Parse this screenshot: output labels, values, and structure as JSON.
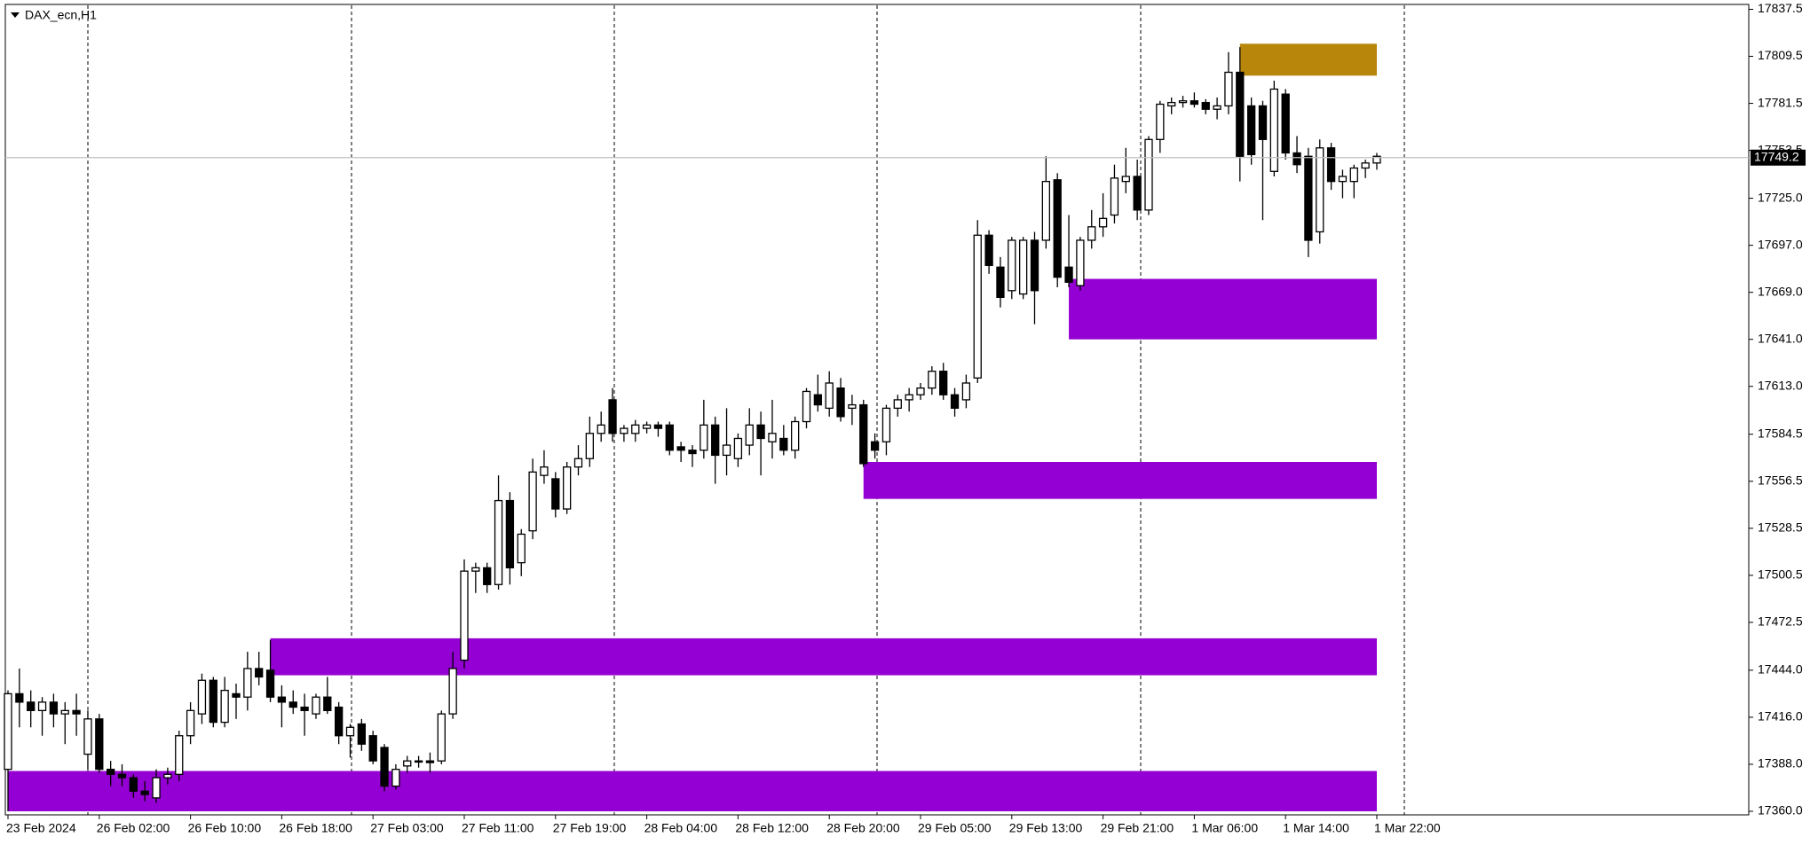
{
  "chart_data": {
    "type": "candlestick",
    "title": "DAX_ecn,H1",
    "categories": [
      "23 Feb 2024",
      null,
      null,
      null,
      null,
      null,
      null,
      null,
      "26 Feb 02:00",
      null,
      null,
      null,
      null,
      null,
      null,
      null,
      "26 Feb 10:00",
      null,
      null,
      null,
      null,
      null,
      null,
      null,
      "26 Feb 18:00",
      null,
      null,
      null,
      null,
      null,
      null,
      null,
      "27 Feb 03:00",
      null,
      null,
      null,
      null,
      null,
      null,
      null,
      "27 Feb 11:00",
      null,
      null,
      null,
      null,
      null,
      null,
      null,
      "27 Feb 19:00",
      null,
      null,
      null,
      null,
      null,
      null,
      null,
      "28 Feb 04:00",
      null,
      null,
      null,
      null,
      null,
      null,
      null,
      "28 Feb 12:00",
      null,
      null,
      null,
      null,
      null,
      null,
      null,
      "28 Feb 20:00",
      null,
      null,
      null,
      null,
      null,
      null,
      null,
      "29 Feb 05:00",
      null,
      null,
      null,
      null,
      null,
      null,
      null,
      "29 Feb 13:00",
      null,
      null,
      null,
      null,
      null,
      null,
      null,
      "29 Feb 21:00",
      null,
      null,
      null,
      null,
      null,
      null,
      null,
      "1 Mar 06:00",
      null,
      null,
      null,
      null,
      null,
      null,
      null,
      "1 Mar 14:00",
      null,
      null,
      null,
      null,
      null,
      null,
      null,
      "1 Mar 22:00"
    ],
    "ohlc": [
      [
        17385,
        17432,
        17360,
        17430
      ],
      [
        17430,
        17445,
        17410,
        17425
      ],
      [
        17425,
        17432,
        17410,
        17420
      ],
      [
        17420,
        17428,
        17405,
        17425
      ],
      [
        17425,
        17430,
        17410,
        17418
      ],
      [
        17418,
        17425,
        17400,
        17420
      ],
      [
        17420,
        17430,
        17405,
        17418
      ],
      [
        17394,
        17420,
        17385,
        17415
      ],
      [
        17415,
        17418,
        17383,
        17385
      ],
      [
        17385,
        17390,
        17375,
        17382
      ],
      [
        17382,
        17388,
        17375,
        17380
      ],
      [
        17380,
        17382,
        17368,
        17372
      ],
      [
        17372,
        17378,
        17366,
        17370
      ],
      [
        17368,
        17385,
        17365,
        17380
      ],
      [
        17380,
        17386,
        17376,
        17382
      ],
      [
        17382,
        17408,
        17378,
        17405
      ],
      [
        17405,
        17425,
        17400,
        17420
      ],
      [
        17418,
        17442,
        17412,
        17438
      ],
      [
        17438,
        17440,
        17410,
        17413
      ],
      [
        17413,
        17440,
        17410,
        17432
      ],
      [
        17430,
        17436,
        17415,
        17428
      ],
      [
        17428,
        17455,
        17420,
        17445
      ],
      [
        17445,
        17455,
        17435,
        17440
      ],
      [
        17444,
        17462,
        17425,
        17428
      ],
      [
        17428,
        17435,
        17410,
        17425
      ],
      [
        17425,
        17432,
        17418,
        17422
      ],
      [
        17422,
        17430,
        17405,
        17420
      ],
      [
        17418,
        17430,
        17415,
        17428
      ],
      [
        17428,
        17440,
        17418,
        17420
      ],
      [
        17422,
        17425,
        17400,
        17405
      ],
      [
        17405,
        17412,
        17392,
        17410
      ],
      [
        17412,
        17415,
        17396,
        17400
      ],
      [
        17405,
        17408,
        17388,
        17390
      ],
      [
        17398,
        17400,
        17372,
        17375
      ],
      [
        17375,
        17388,
        17373,
        17385
      ],
      [
        17387,
        17393,
        17383,
        17390
      ],
      [
        17390,
        17393,
        17386,
        17390
      ],
      [
        17390,
        17395,
        17383,
        17389
      ],
      [
        17390,
        17420,
        17388,
        17418
      ],
      [
        17418,
        17455,
        17415,
        17445
      ],
      [
        17450,
        17510,
        17445,
        17503
      ],
      [
        17503,
        17508,
        17490,
        17505
      ],
      [
        17505,
        17508,
        17490,
        17495
      ],
      [
        17495,
        17560,
        17492,
        17545
      ],
      [
        17545,
        17550,
        17495,
        17505
      ],
      [
        17508,
        17528,
        17500,
        17525
      ],
      [
        17527,
        17570,
        17522,
        17562
      ],
      [
        17560,
        17575,
        17555,
        17565
      ],
      [
        17558,
        17562,
        17535,
        17540
      ],
      [
        17540,
        17568,
        17537,
        17565
      ],
      [
        17565,
        17578,
        17560,
        17570
      ],
      [
        17570,
        17595,
        17565,
        17585
      ],
      [
        17585,
        17598,
        17580,
        17590
      ],
      [
        17605,
        17612,
        17580,
        17585
      ],
      [
        17585,
        17590,
        17580,
        17588
      ],
      [
        17585,
        17593,
        17580,
        17590
      ],
      [
        17588,
        17592,
        17585,
        17590
      ],
      [
        17590,
        17592,
        17583,
        17588
      ],
      [
        17590,
        17592,
        17572,
        17575
      ],
      [
        17577,
        17580,
        17568,
        17575
      ],
      [
        17575,
        17578,
        17565,
        17573
      ],
      [
        17575,
        17605,
        17570,
        17590
      ],
      [
        17590,
        17595,
        17555,
        17572
      ],
      [
        17572,
        17600,
        17560,
        17578
      ],
      [
        17570,
        17585,
        17565,
        17582
      ],
      [
        17578,
        17600,
        17572,
        17590
      ],
      [
        17590,
        17598,
        17560,
        17582
      ],
      [
        17580,
        17605,
        17570,
        17585
      ],
      [
        17582,
        17590,
        17572,
        17575
      ],
      [
        17575,
        17595,
        17570,
        17592
      ],
      [
        17592,
        17612,
        17588,
        17610
      ],
      [
        17608,
        17620,
        17598,
        17602
      ],
      [
        17600,
        17622,
        17595,
        17615
      ],
      [
        17612,
        17618,
        17592,
        17595
      ],
      [
        17600,
        17608,
        17590,
        17602
      ],
      [
        17602,
        17605,
        17565,
        17567
      ],
      [
        17580,
        17585,
        17570,
        17575
      ],
      [
        17580,
        17602,
        17572,
        17600
      ],
      [
        17600,
        17608,
        17595,
        17605
      ],
      [
        17605,
        17612,
        17598,
        17608
      ],
      [
        17608,
        17615,
        17605,
        17612
      ],
      [
        17612,
        17625,
        17608,
        17622
      ],
      [
        17622,
        17627,
        17605,
        17608
      ],
      [
        17608,
        17612,
        17595,
        17600
      ],
      [
        17605,
        17620,
        17600,
        17615
      ],
      [
        17618,
        17712,
        17615,
        17703
      ],
      [
        17703,
        17706,
        17680,
        17685
      ],
      [
        17684,
        17690,
        17660,
        17666
      ],
      [
        17670,
        17702,
        17665,
        17700
      ],
      [
        17668,
        17702,
        17665,
        17700
      ],
      [
        17700,
        17705,
        17650,
        17670
      ],
      [
        17700,
        17750,
        17695,
        17735
      ],
      [
        17736,
        17740,
        17672,
        17678
      ],
      [
        17684,
        17715,
        17672,
        17675
      ],
      [
        17673,
        17702,
        17670,
        17700
      ],
      [
        17700,
        17718,
        17695,
        17708
      ],
      [
        17708,
        17728,
        17702,
        17713
      ],
      [
        17715,
        17745,
        17710,
        17737
      ],
      [
        17735,
        17755,
        17728,
        17738
      ],
      [
        17738,
        17748,
        17712,
        17718
      ],
      [
        17718,
        17762,
        17715,
        17760
      ],
      [
        17760,
        17783,
        17752,
        17781
      ],
      [
        17780,
        17785,
        17775,
        17782
      ],
      [
        17782,
        17786,
        17779,
        17783
      ],
      [
        17783,
        17788,
        17779,
        17781
      ],
      [
        17782,
        17784,
        17775,
        17778
      ],
      [
        17778,
        17785,
        17772,
        17780
      ],
      [
        17780,
        17812,
        17775,
        17800
      ],
      [
        17800,
        17815,
        17735,
        17750
      ],
      [
        17780,
        17785,
        17745,
        17751
      ],
      [
        17780,
        17783,
        17712,
        17760
      ],
      [
        17741,
        17795,
        17738,
        17790
      ],
      [
        17787,
        17790,
        17748,
        17752
      ],
      [
        17752,
        17762,
        17740,
        17745
      ],
      [
        17750,
        17755,
        17690,
        17700
      ],
      [
        17705,
        17760,
        17698,
        17755
      ],
      [
        17755,
        17758,
        17730,
        17735
      ],
      [
        17735,
        17742,
        17725,
        17738
      ],
      [
        17735,
        17745,
        17725,
        17743
      ],
      [
        17743,
        17748,
        17737,
        17746
      ],
      [
        17746,
        17752,
        17742,
        17750
      ]
    ],
    "zones": [
      {
        "from": 0,
        "to": 120,
        "y0": 17360,
        "y1": 17384,
        "color": "#9400d3"
      },
      {
        "from": 23,
        "to": 120,
        "y0": 17441,
        "y1": 17463,
        "color": "#9400d3"
      },
      {
        "from": 75,
        "to": 120,
        "y0": 17546,
        "y1": 17568,
        "color": "#9400d3"
      },
      {
        "from": 93,
        "to": 120,
        "y0": 17641,
        "y1": 17677,
        "color": "#9400d3"
      },
      {
        "from": 108,
        "to": 120,
        "y0": 17798,
        "y1": 17817,
        "color": "#b8860b"
      }
    ],
    "price_line": {
      "value": 17749.2,
      "label": "17749.2"
    },
    "ylim": [
      17360,
      17837.5
    ],
    "yticks": [
      17837.5,
      17809.5,
      17781.5,
      17753.5,
      {
        "value": 17725,
        "label": "17725.0"
      },
      {
        "value": 17697,
        "label": "17697.0"
      },
      {
        "value": 17669,
        "label": "17669.0"
      },
      {
        "value": 17641,
        "label": "17641.0"
      },
      {
        "value": 17613,
        "label": "17613.0"
      },
      17584.5,
      17556.5,
      17528.5,
      17500.5,
      17472.5,
      {
        "value": 17444,
        "label": "17444.0"
      },
      {
        "value": 17416,
        "label": "17416.0"
      },
      {
        "value": 17388,
        "label": "17388.0"
      },
      {
        "value": 17360,
        "label": "17360.0"
      }
    ]
  }
}
